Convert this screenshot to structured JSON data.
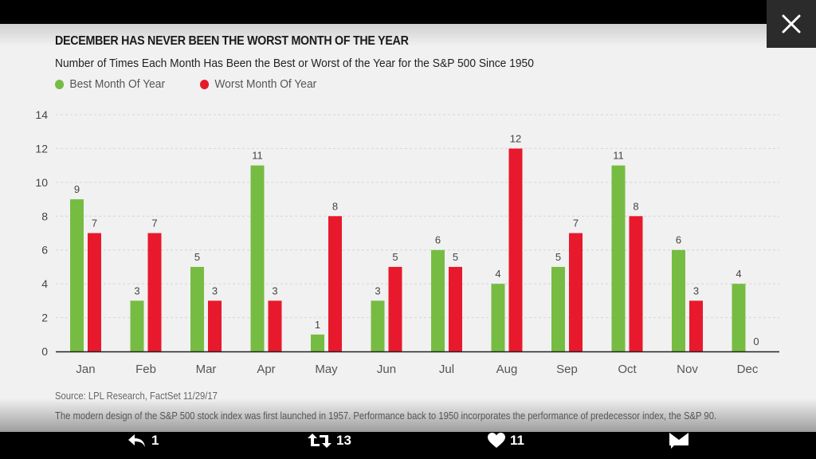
{
  "viewer": {
    "close_icon": "close-icon"
  },
  "chart_data": {
    "type": "bar",
    "title": "DECEMBER HAS NEVER BEEN THE WORST MONTH OF THE YEAR",
    "subtitle": "Number of Times Each Month Has Been the Best or Worst of the Year for the S&P 500 Since 1950",
    "categories": [
      "Jan",
      "Feb",
      "Mar",
      "Apr",
      "May",
      "Jun",
      "Jul",
      "Aug",
      "Sep",
      "Oct",
      "Nov",
      "Dec"
    ],
    "series": [
      {
        "name": "Best Month Of Year",
        "color": "#76bc42",
        "values": [
          9,
          3,
          5,
          11,
          1,
          3,
          6,
          4,
          5,
          11,
          6,
          4
        ]
      },
      {
        "name": "Worst Month Of Year",
        "color": "#e8192c",
        "values": [
          7,
          7,
          3,
          3,
          8,
          5,
          5,
          12,
          7,
          8,
          3,
          0
        ]
      }
    ],
    "xlabel": "",
    "ylabel": "",
    "ylim": [
      0,
      14
    ],
    "yticks": [
      0,
      2,
      4,
      6,
      8,
      10,
      12,
      14
    ],
    "grid": true,
    "legend_position": "top-left",
    "data_labels": true
  },
  "source": "Source: LPL Research, FactSet  11/29/17",
  "footnote": "The modern design of the S&P 500 stock index was first launched in 1957. Performance back to 1950 incorporates the performance of predecessor index, the S&P 90.",
  "actions": {
    "reply": {
      "icon": "reply-icon",
      "count": "1"
    },
    "retweet": {
      "icon": "retweet-icon",
      "count": "13"
    },
    "like": {
      "icon": "heart-icon",
      "count": "11"
    },
    "message": {
      "icon": "message-icon"
    }
  }
}
